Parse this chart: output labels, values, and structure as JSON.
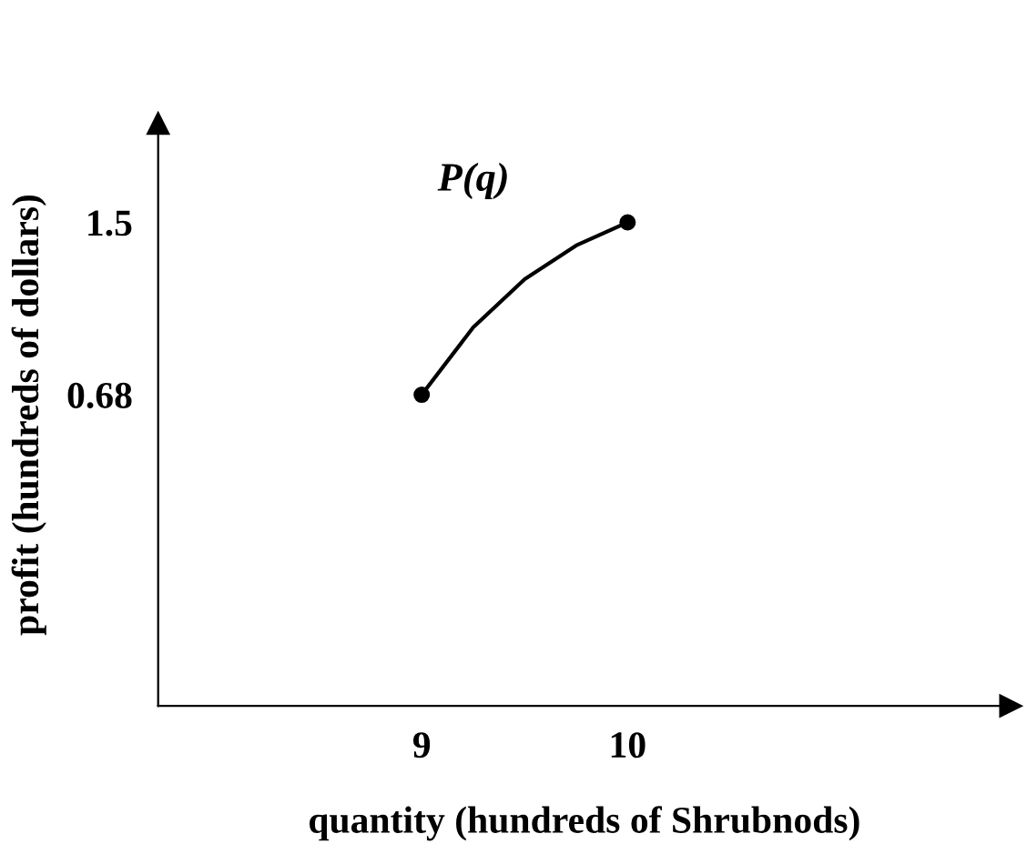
{
  "chart_data": {
    "type": "line",
    "xlabel": "quantity (hundreds of Shrubnods)",
    "ylabel": "profit (hundreds of dollars)",
    "xlim": [
      7.72,
      11.86
    ],
    "ylim": [
      -0.8,
      1.97
    ],
    "xticks": [
      9,
      10
    ],
    "yticks": [
      0.68,
      1.5
    ],
    "grid": false,
    "legend": false,
    "series": [
      {
        "color": "#000000",
        "marker": "none",
        "x": [
          9,
          9.25,
          9.5,
          9.75,
          10
        ],
        "values": [
          0.68,
          1.0,
          1.23,
          1.39,
          1.5
        ]
      },
      {
        "type": "scatter",
        "color": "#000000",
        "marker": "circle",
        "x": [
          9,
          10
        ],
        "values": [
          0.68,
          1.5
        ]
      }
    ],
    "annotations": [
      "P(q)"
    ]
  }
}
